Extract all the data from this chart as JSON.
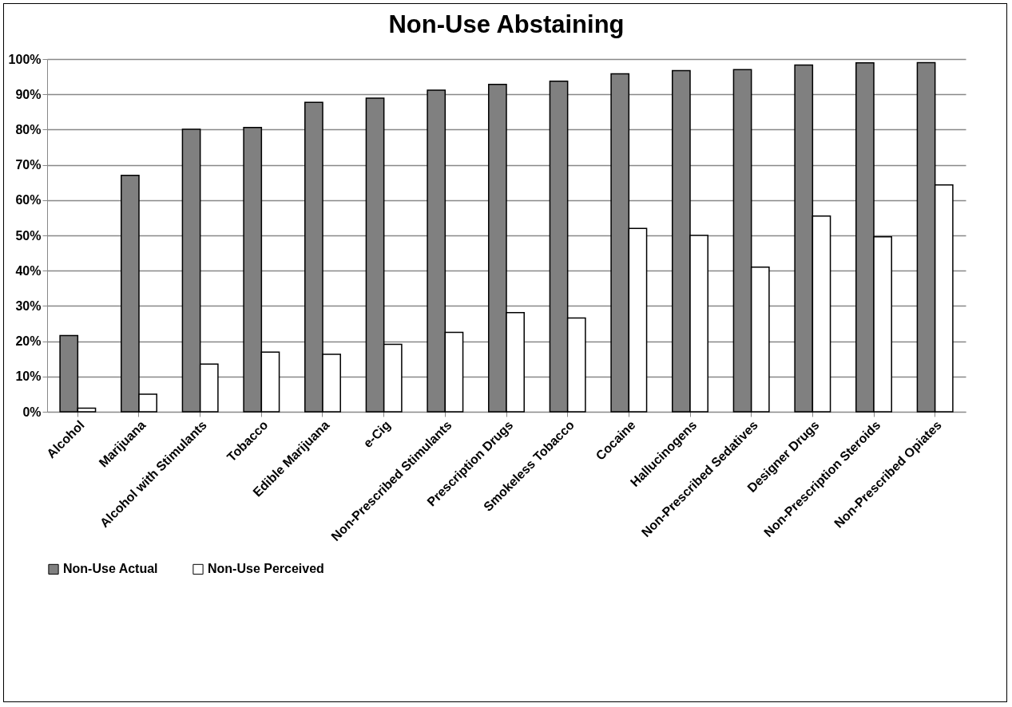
{
  "chart_data": {
    "type": "bar",
    "title": "Non-Use Abstaining",
    "categories": [
      "Alcohol",
      "Marijuana",
      "Alcohol with Stimulants",
      "Tobacco",
      "Edible Marijuana",
      "e-Cig",
      "Non-Prescribed Stimulants",
      "Prescription Drugs",
      "Smokeless Tobacco",
      "Cocaine",
      "Hallucinogens",
      "Non-Prescribed Sedatives",
      "Designer Drugs",
      "Non-Prescription Steroids",
      "Non-Prescribed Opiates"
    ],
    "series": [
      {
        "name": "Non-Use Actual",
        "color": "#808080",
        "values": [
          21.6,
          67.0,
          80.1,
          80.6,
          87.7,
          88.9,
          91.2,
          92.8,
          93.7,
          95.8,
          96.7,
          97.0,
          98.3,
          98.9,
          99.0
        ]
      },
      {
        "name": "Non-Use Perceived",
        "color": "#ffffff",
        "values": [
          1.0,
          5.0,
          13.5,
          16.9,
          16.3,
          19.1,
          22.5,
          28.1,
          26.6,
          52.0,
          50.0,
          41.0,
          55.5,
          49.6,
          64.3
        ]
      }
    ],
    "ylim": [
      0,
      100
    ],
    "yticks": [
      {
        "value": 0,
        "label": "0%"
      },
      {
        "value": 10,
        "label": "10%"
      },
      {
        "value": 20,
        "label": "20%"
      },
      {
        "value": 30,
        "label": "30%"
      },
      {
        "value": 40,
        "label": "40%"
      },
      {
        "value": 50,
        "label": "50%"
      },
      {
        "value": 60,
        "label": "60%"
      },
      {
        "value": 70,
        "label": "70%"
      },
      {
        "value": 80,
        "label": "80%"
      },
      {
        "value": 90,
        "label": "90%"
      },
      {
        "value": 100,
        "label": "100%"
      }
    ],
    "grid": "y",
    "legend": "bottom"
  }
}
